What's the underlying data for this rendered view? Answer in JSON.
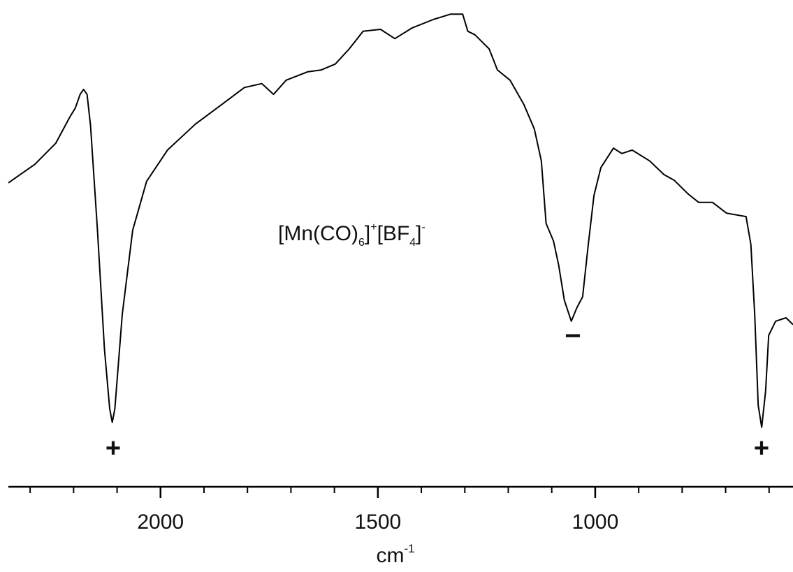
{
  "chart_data": {
    "type": "line",
    "x": [
      2350,
      2289,
      2241,
      2209,
      2196,
      2185,
      2177,
      2169,
      2161,
      2145,
      2129,
      2117,
      2111,
      2105,
      2088,
      2064,
      2032,
      1984,
      1920,
      1855,
      1807,
      1767,
      1740,
      1711,
      1662,
      1630,
      1598,
      1566,
      1534,
      1494,
      1461,
      1421,
      1373,
      1333,
      1305,
      1293,
      1277,
      1260,
      1244,
      1225,
      1196,
      1164,
      1140,
      1124,
      1113,
      1096,
      1084,
      1071,
      1055,
      1042,
      1029,
      1016,
      1003,
      987,
      958,
      939,
      915,
      875,
      842,
      818,
      786,
      762,
      730,
      698,
      653,
      642,
      633,
      625,
      617,
      608,
      601,
      585,
      561,
      545
    ],
    "series": [
      {
        "color": "#000000",
        "values": [
          62.6,
          66.4,
          70.7,
          76,
          77.9,
          80.7,
          81.7,
          80.7,
          74.3,
          52.9,
          28.6,
          16.4,
          13.6,
          16.4,
          35.7,
          52.9,
          62.9,
          69.3,
          74.6,
          78.9,
          82.1,
          82.9,
          80.7,
          83.6,
          85.3,
          85.7,
          86.9,
          90,
          93.6,
          94,
          92.1,
          94.3,
          96,
          97.1,
          97.1,
          93.6,
          92.9,
          91.4,
          90,
          85.7,
          83.6,
          78.6,
          73.6,
          67.1,
          54.3,
          50.7,
          45.7,
          38.6,
          34.3,
          37.1,
          39.3,
          50,
          60,
          65.7,
          69.7,
          68.6,
          69.3,
          67.1,
          64.3,
          63.1,
          60.3,
          58.6,
          58.6,
          56.4,
          55.7,
          50,
          35.7,
          17.1,
          12.6,
          20,
          31.4,
          34.3,
          35,
          33.6
        ]
      }
    ],
    "xlim": [
      2350,
      545
    ],
    "xticks": [
      2000,
      1500,
      1000
    ],
    "xminorticks": [
      2300,
      2200,
      2100,
      1900,
      1800,
      1700,
      1600,
      1400,
      1300,
      1200,
      1100,
      900,
      800,
      700,
      600
    ],
    "ylim": [
      0,
      100
    ],
    "xlabel": [
      "cm",
      "-1"
    ],
    "annotation": [
      "[Mn(CO)",
      "6",
      "]",
      "+",
      "[BF",
      "4",
      "]",
      "-"
    ],
    "markers": [
      "+",
      "−",
      "+"
    ]
  }
}
